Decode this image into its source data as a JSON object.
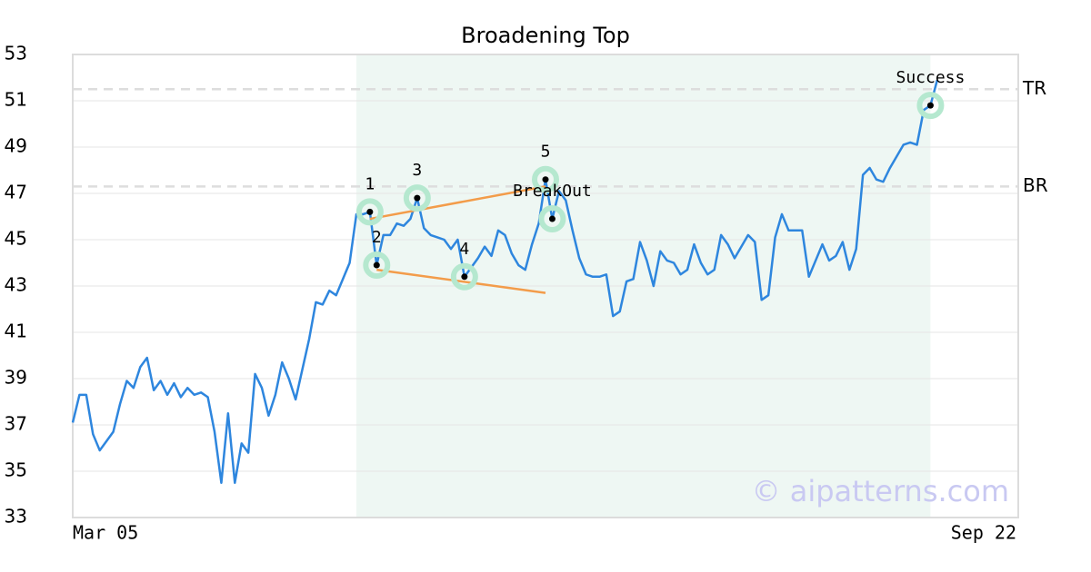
{
  "chart_data": {
    "type": "line",
    "title": "Broadening Top",
    "categories": [
      "Mar 05",
      null,
      null,
      null,
      null,
      null,
      null,
      null,
      null,
      null,
      null,
      null,
      null,
      null,
      null,
      null,
      null,
      null,
      null,
      null,
      null,
      null,
      null,
      null,
      null,
      null,
      null,
      null,
      null,
      null,
      null,
      null,
      null,
      null,
      null,
      null,
      null,
      null,
      null,
      null,
      null,
      null,
      null,
      null,
      null,
      null,
      null,
      null,
      null,
      null,
      null,
      null,
      null,
      null,
      null,
      null,
      null,
      null,
      null,
      null,
      null,
      null,
      null,
      null,
      null,
      null,
      null,
      null,
      null,
      null,
      null,
      null,
      null,
      null,
      null,
      null,
      null,
      null,
      null,
      null,
      null,
      null,
      null,
      null,
      null,
      null,
      null,
      null,
      null,
      null,
      null,
      null,
      null,
      null,
      null,
      null,
      null,
      null,
      null,
      null,
      null,
      null,
      null,
      null,
      null,
      null,
      null,
      null,
      null,
      null,
      null,
      null,
      null,
      null,
      null,
      null,
      null,
      null,
      null,
      null,
      null,
      null,
      null,
      null,
      null,
      null,
      null,
      null,
      null,
      null,
      null,
      null,
      null,
      null,
      null,
      null,
      null,
      null,
      null,
      null,
      "Sep 22"
    ],
    "series": [
      {
        "color": "#2e86de",
        "values": [
          37.1,
          38.3,
          38.3,
          36.6,
          35.9,
          36.3,
          36.7,
          37.9,
          38.9,
          38.6,
          39.5,
          39.9,
          38.5,
          38.9,
          38.3,
          38.8,
          38.2,
          38.6,
          38.3,
          38.4,
          38.2,
          36.7,
          34.5,
          37.5,
          34.5,
          36.2,
          35.8,
          39.2,
          38.6,
          37.4,
          38.3,
          39.7,
          39.0,
          38.1,
          39.4,
          40.7,
          42.3,
          42.2,
          42.8,
          42.6,
          43.3,
          44.0,
          46.1,
          46.1,
          46.2,
          43.9,
          45.2,
          45.2,
          45.7,
          45.6,
          45.9,
          46.8,
          45.5,
          45.2,
          45.1,
          45.0,
          44.6,
          45.0,
          43.4,
          43.8,
          44.2,
          44.7,
          44.3,
          45.4,
          45.2,
          44.4,
          43.9,
          43.7,
          44.8,
          45.7,
          47.6,
          45.9,
          47.1,
          46.7,
          45.4,
          44.2,
          43.5,
          43.4,
          43.4,
          43.5,
          41.7,
          41.9,
          43.2,
          43.3,
          44.9,
          44.1,
          43.0,
          44.5,
          44.1,
          44.0,
          43.5,
          43.7,
          44.8,
          44.0,
          43.5,
          43.7,
          45.2,
          44.8,
          44.2,
          44.7,
          45.2,
          44.9,
          42.4,
          42.6,
          45.1,
          46.1,
          45.4,
          45.4,
          45.4,
          43.4,
          44.1,
          44.8,
          44.1,
          44.3,
          44.9,
          43.7,
          44.6,
          47.8,
          48.1,
          47.6,
          47.5,
          48.1,
          48.6,
          49.1,
          49.2,
          49.1,
          50.6,
          50.8,
          51.9,
          null,
          null,
          null,
          null,
          null,
          null,
          null,
          null,
          null,
          null,
          null,
          null
        ]
      }
    ],
    "ylim": [
      33,
      53
    ],
    "yticks": [
      33,
      35,
      37,
      39,
      41,
      43,
      45,
      47,
      49,
      51,
      53
    ],
    "grid": true,
    "highlight": {
      "start": 42,
      "end": 127,
      "color": "#eef7f3"
    },
    "hlines": [
      {
        "label": "TR",
        "value": 51.5
      },
      {
        "label": "BR",
        "value": 47.3
      }
    ],
    "trend_lines": [
      {
        "color": "#f39c4a",
        "start": [
          44,
          45.9
        ],
        "end": [
          70,
          47.3
        ]
      },
      {
        "color": "#f39c4a",
        "start": [
          45,
          43.7
        ],
        "end": [
          70,
          42.7
        ]
      }
    ],
    "points": [
      {
        "label": "1",
        "index": 44
      },
      {
        "label": "2",
        "index": 45
      },
      {
        "label": "3",
        "index": 51
      },
      {
        "label": "4",
        "index": 58
      },
      {
        "label": "5",
        "index": 70
      },
      {
        "label": "BreakOut",
        "index": 71
      },
      {
        "label": "Success",
        "index": 127
      }
    ],
    "watermark": "© aipatterns.com"
  }
}
